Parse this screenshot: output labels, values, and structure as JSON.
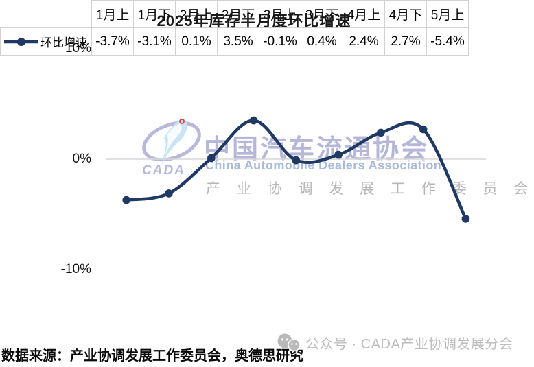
{
  "chart_data": {
    "type": "line",
    "title": "2025年库存半月度环比增速",
    "categories": [
      "1月上",
      "1月下",
      "2月上",
      "2月下",
      "3月上",
      "3月下",
      "4月上",
      "4月下",
      "5月上"
    ],
    "series": [
      {
        "name": "环比增速",
        "values": [
          -3.7,
          -3.1,
          0.1,
          3.5,
          -0.1,
          0.4,
          2.4,
          2.7,
          -5.4
        ]
      }
    ],
    "ylim": [
      -10,
      10
    ],
    "yticks": [
      "10%",
      "0%",
      "-10%"
    ],
    "grid": "zero-line-only",
    "legend_position": "table-row-left",
    "smooth": true
  },
  "axis": {
    "top": "10%",
    "zero": "0%",
    "bottom": "-10%"
  },
  "table": {
    "legend_label": "环比增速",
    "headers": [
      "1月上",
      "1月下",
      "2月上",
      "2月下",
      "3月上",
      "3月下",
      "4月上",
      "4月下",
      "5月上"
    ],
    "values": [
      "-3.7%",
      "-3.1%",
      "0.1%",
      "3.5%",
      "-0.1%",
      "0.4%",
      "2.4%",
      "2.7%",
      "-5.4%"
    ]
  },
  "watermark": {
    "logo_text": "CADA",
    "cn": "中国汽车流通协会",
    "en": "China Automobile Dealers Association",
    "sub": "产 业 协 调 发 展 工 作 委 员 会"
  },
  "footer": {
    "source": "数据来源：产业协调发展工作委员会，奥德思研究",
    "wechat": "公众号 · CADA产业协调发展分会"
  },
  "colors": {
    "line": "#1f3864",
    "gridline": "#d7d7d7",
    "table_border": "#d2d2d2",
    "watermark_cn": "#b5b6d8",
    "watermark_en": "#a9bad9",
    "watermark_sub": "#b6b6b6",
    "footer_gray": "#bdbdbd",
    "logo_outline": "#b7b8da",
    "logo_swoosh": "#c9e4f4",
    "logo_red": "#d94a45"
  }
}
